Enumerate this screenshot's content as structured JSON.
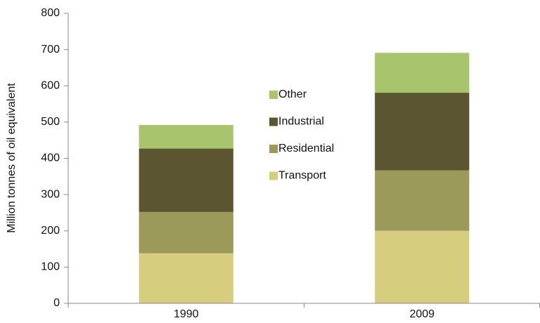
{
  "chart_data": {
    "type": "stacked_bar",
    "y_label": "Million tonnes of oil equivalent",
    "categories": [
      "1990",
      "2009"
    ],
    "series": [
      {
        "name": "Transport",
        "color": "#d6cd7e",
        "values": [
          138,
          200
        ]
      },
      {
        "name": "Residential",
        "color": "#9c9a5a",
        "values": [
          114,
          167
        ]
      },
      {
        "name": "Industrial",
        "color": "#5b5631",
        "values": [
          175,
          214
        ]
      },
      {
        "name": "Other",
        "color": "#a8c46c",
        "values": [
          65,
          110
        ]
      }
    ],
    "ylim": [
      0,
      800
    ],
    "yticks": [
      0,
      100,
      200,
      300,
      400,
      500,
      600,
      700,
      800
    ],
    "grid": false
  }
}
